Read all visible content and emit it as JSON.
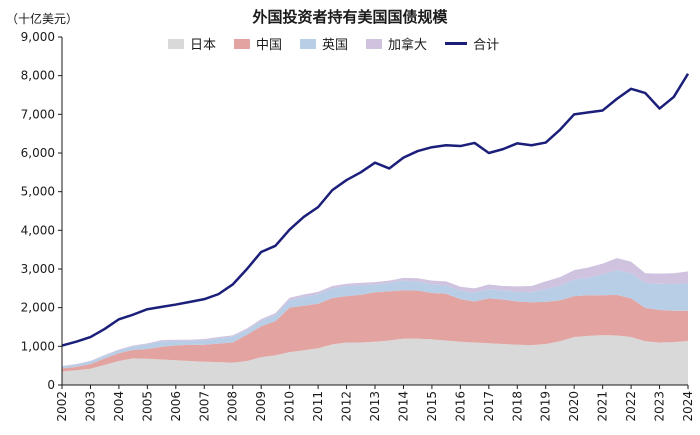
{
  "title": "外国投资者持有美国国债规模",
  "unit_label": "（十亿美元）",
  "colors": {
    "japan": "#d9d9d9",
    "china": "#e3a3a0",
    "uk": "#b8cde6",
    "canada": "#cfc3e0",
    "total": "#1b1f7a",
    "axis": "#1a1a1a"
  },
  "chart_data": {
    "type": "area",
    "title": "外国投资者持有美国国债规模",
    "ylabel": "（十亿美元）",
    "xlabel": "",
    "ylim": [
      0,
      9000
    ],
    "xlim": [
      2002,
      2024
    ],
    "grid": false,
    "legend_position": "top",
    "x_ticks": [
      "2002",
      "2003",
      "2004",
      "2005",
      "2006",
      "2007",
      "2008",
      "2009",
      "2010",
      "2011",
      "2012",
      "2013",
      "2014",
      "2015",
      "2016",
      "2017",
      "2018",
      "2019",
      "2020",
      "2021",
      "2022",
      "2023",
      "2024"
    ],
    "y_ticks": [
      "0",
      "1,000",
      "2,000",
      "3,000",
      "4,000",
      "5,000",
      "6,000",
      "7,000",
      "8,000",
      "9,000"
    ],
    "x": [
      2002,
      2002.5,
      2003,
      2003.5,
      2004,
      2004.5,
      2005,
      2005.5,
      2006,
      2006.5,
      2007,
      2007.5,
      2008,
      2008.5,
      2009,
      2009.5,
      2010,
      2010.5,
      2011,
      2011.5,
      2012,
      2012.5,
      2013,
      2013.5,
      2014,
      2014.5,
      2015,
      2015.5,
      2016,
      2016.5,
      2017,
      2017.5,
      2018,
      2018.5,
      2019,
      2019.5,
      2020,
      2020.5,
      2021,
      2021.5,
      2022,
      2022.5,
      2023,
      2023.5,
      2024
    ],
    "series": [
      {
        "name": "日本",
        "kind": "area",
        "values": [
          350,
          380,
          420,
          520,
          620,
          690,
          680,
          660,
          640,
          620,
          600,
          590,
          580,
          620,
          720,
          770,
          850,
          900,
          950,
          1050,
          1100,
          1100,
          1120,
          1150,
          1200,
          1200,
          1180,
          1150,
          1120,
          1100,
          1080,
          1060,
          1040,
          1030,
          1060,
          1130,
          1240,
          1270,
          1290,
          1280,
          1240,
          1130,
          1100,
          1110,
          1140
        ]
      },
      {
        "name": "中国",
        "kind": "area",
        "values": [
          80,
          90,
          120,
          170,
          200,
          220,
          250,
          330,
          380,
          420,
          440,
          480,
          520,
          680,
          800,
          880,
          1150,
          1150,
          1150,
          1200,
          1200,
          1230,
          1280,
          1270,
          1250,
          1240,
          1200,
          1210,
          1100,
          1060,
          1160,
          1150,
          1120,
          1110,
          1090,
          1060,
          1060,
          1050,
          1030,
          1050,
          1000,
          860,
          840,
          810,
          780
        ]
      },
      {
        "name": "英国",
        "kind": "area",
        "values": [
          50,
          60,
          70,
          70,
          80,
          90,
          120,
          140,
          120,
          100,
          120,
          140,
          150,
          120,
          140,
          160,
          200,
          230,
          250,
          250,
          260,
          250,
          200,
          220,
          250,
          240,
          230,
          220,
          220,
          230,
          240,
          230,
          250,
          260,
          330,
          380,
          430,
          450,
          540,
          640,
          650,
          650,
          680,
          690,
          720
        ]
      },
      {
        "name": "加拿大",
        "kind": "area",
        "values": [
          10,
          12,
          14,
          16,
          18,
          20,
          25,
          30,
          30,
          30,
          30,
          32,
          35,
          40,
          45,
          50,
          55,
          60,
          60,
          60,
          60,
          60,
          60,
          60,
          70,
          80,
          90,
          100,
          100,
          110,
          120,
          120,
          140,
          160,
          200,
          220,
          240,
          270,
          280,
          310,
          300,
          250,
          260,
          280,
          300
        ]
      },
      {
        "name": "合计",
        "kind": "line",
        "values": [
          1020,
          1120,
          1240,
          1450,
          1700,
          1820,
          1960,
          2020,
          2080,
          2150,
          2220,
          2350,
          2600,
          3000,
          3440,
          3600,
          4020,
          4350,
          4600,
          5040,
          5300,
          5500,
          5750,
          5600,
          5880,
          6050,
          6150,
          6200,
          6180,
          6260,
          6000,
          6100,
          6250,
          6200,
          6270,
          6600,
          7000,
          7050,
          7100,
          7400,
          7660,
          7550,
          7150,
          7450,
          8050
        ]
      }
    ]
  }
}
